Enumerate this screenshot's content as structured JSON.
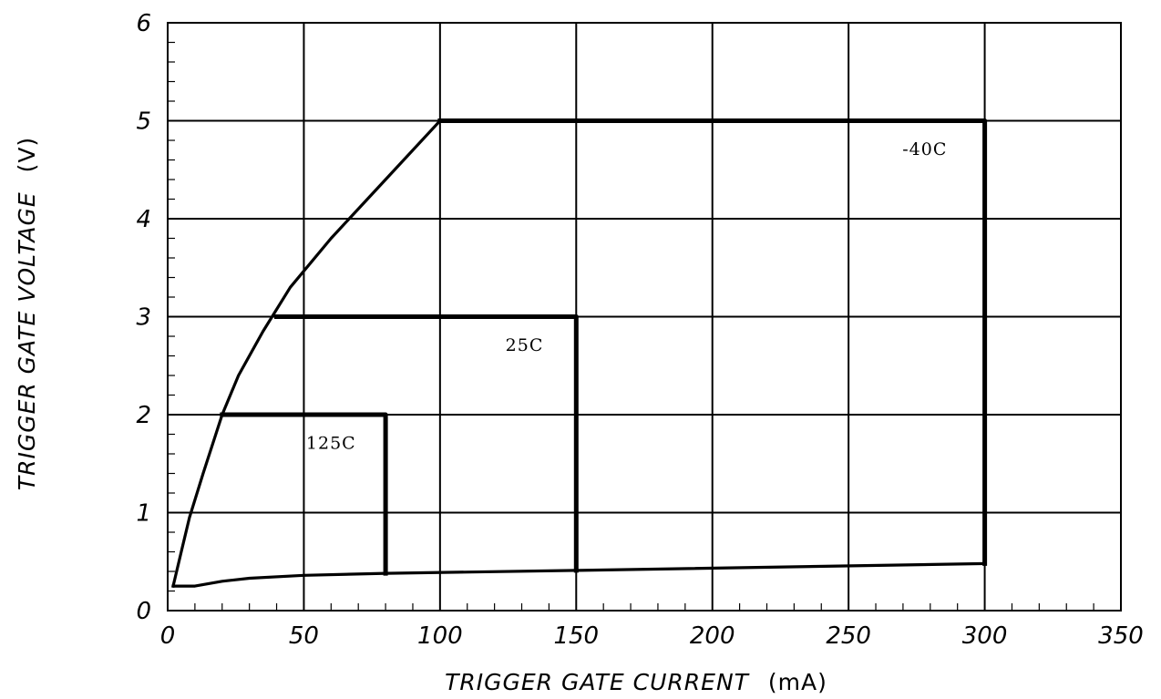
{
  "chart_data": {
    "type": "line",
    "xlabel": "TRIGGER GATE CURRENT",
    "xunit": "(mA)",
    "ylabel": "TRIGGER GATE VOLTAGE",
    "yunit": "(V)",
    "xlim": [
      0,
      350
    ],
    "ylim": [
      0,
      6
    ],
    "xticks": [
      0,
      50,
      100,
      150,
      200,
      250,
      300,
      350
    ],
    "yticks": [
      0,
      1,
      2,
      3,
      4,
      5,
      6
    ],
    "xtick_labels": [
      "0",
      "50",
      "100",
      "150",
      "200",
      "250",
      "300",
      "350"
    ],
    "ytick_labels": [
      "0",
      "1",
      "2",
      "3",
      "4",
      "5",
      "6"
    ],
    "grid": true,
    "minor_ticks": {
      "x": 10,
      "y": 0.2
    },
    "series": [
      {
        "id": "upper-boundary",
        "x": [
          2,
          5,
          8,
          13,
          20,
          26,
          35,
          45,
          60,
          80,
          100
        ],
        "y": [
          0.25,
          0.6,
          0.95,
          1.4,
          2.0,
          2.4,
          2.85,
          3.3,
          3.8,
          4.4,
          5.0
        ]
      },
      {
        "id": "lower-boundary",
        "x": [
          2,
          10,
          20,
          30,
          50,
          80,
          150,
          300
        ],
        "y": [
          0.25,
          0.25,
          0.3,
          0.33,
          0.36,
          0.38,
          0.41,
          0.48
        ]
      },
      {
        "id": "region-125C",
        "label": "125C",
        "x": [
          20,
          80,
          80
        ],
        "y": [
          2.0,
          2.0,
          0.38
        ]
      },
      {
        "id": "region-25C",
        "label": "25C",
        "x": [
          40,
          150,
          150
        ],
        "y": [
          3.0,
          3.0,
          0.41
        ]
      },
      {
        "id": "region--40C",
        "label": "-40C",
        "x": [
          100,
          300,
          300
        ],
        "y": [
          5.0,
          5.0,
          0.48
        ]
      }
    ],
    "annotations": [
      {
        "text": "125C",
        "x": 60,
        "y": 1.65
      },
      {
        "text": "25C",
        "x": 131,
        "y": 2.65
      },
      {
        "text": "-40C",
        "x": 278,
        "y": 4.65
      }
    ]
  }
}
